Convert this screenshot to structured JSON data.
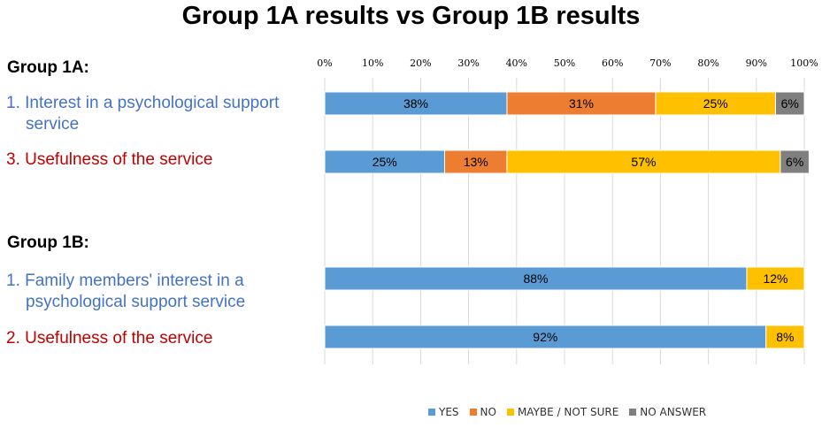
{
  "title": "Group 1A results vs Group 1B results",
  "groups": [
    {
      "label": "Group 1A:",
      "questions": [
        {
          "lines": [
            "1. Interest in a psychological support",
            "service"
          ],
          "color": "#4472C4"
        },
        {
          "lines": [
            "3. Usefulness of the service"
          ],
          "color": "#C00000"
        }
      ]
    },
    {
      "label": "Group 1B:",
      "questions": [
        {
          "lines": [
            "1. Family members' interest in a",
            "psychological support service"
          ],
          "color": "#4472C4"
        },
        {
          "lines": [
            "2. Usefulness of the service"
          ],
          "color": "#C00000"
        }
      ]
    }
  ],
  "chart_data": {
    "type": "bar",
    "orientation": "horizontal",
    "stacked": true,
    "title": "Group 1A results vs Group 1B results",
    "xlim": [
      0,
      100
    ],
    "xtick_labels": [
      "0%",
      "10%",
      "20%",
      "30%",
      "40%",
      "50%",
      "60%",
      "70%",
      "80%",
      "90%",
      "100%"
    ],
    "grid": true,
    "legend_position": "bottom",
    "categories": [
      "1. Interest in a psychological support service",
      "3. Usefulness of the service",
      "1. Family members' interest in a psychological support service",
      "2. Usefulness of the service"
    ],
    "series": [
      {
        "name": "YES",
        "color": "#5B9BD5",
        "values": [
          38,
          25,
          88,
          92
        ],
        "labels": [
          "38%",
          "25%",
          "88%",
          "92%"
        ]
      },
      {
        "name": "NO",
        "color": "#ED7D31",
        "values": [
          31,
          13,
          0,
          0
        ],
        "labels": [
          "31%",
          "13%",
          "",
          ""
        ]
      },
      {
        "name": "MAYBE / NOT SURE",
        "color": "#FFC000",
        "values": [
          25,
          57,
          12,
          8
        ],
        "labels": [
          "25%",
          "57%",
          "12%",
          "8%"
        ]
      },
      {
        "name": "NO ANSWER",
        "color": "#7F7F7F",
        "values": [
          6,
          6,
          0,
          0
        ],
        "labels": [
          "6%",
          "6%",
          "",
          ""
        ]
      }
    ]
  }
}
